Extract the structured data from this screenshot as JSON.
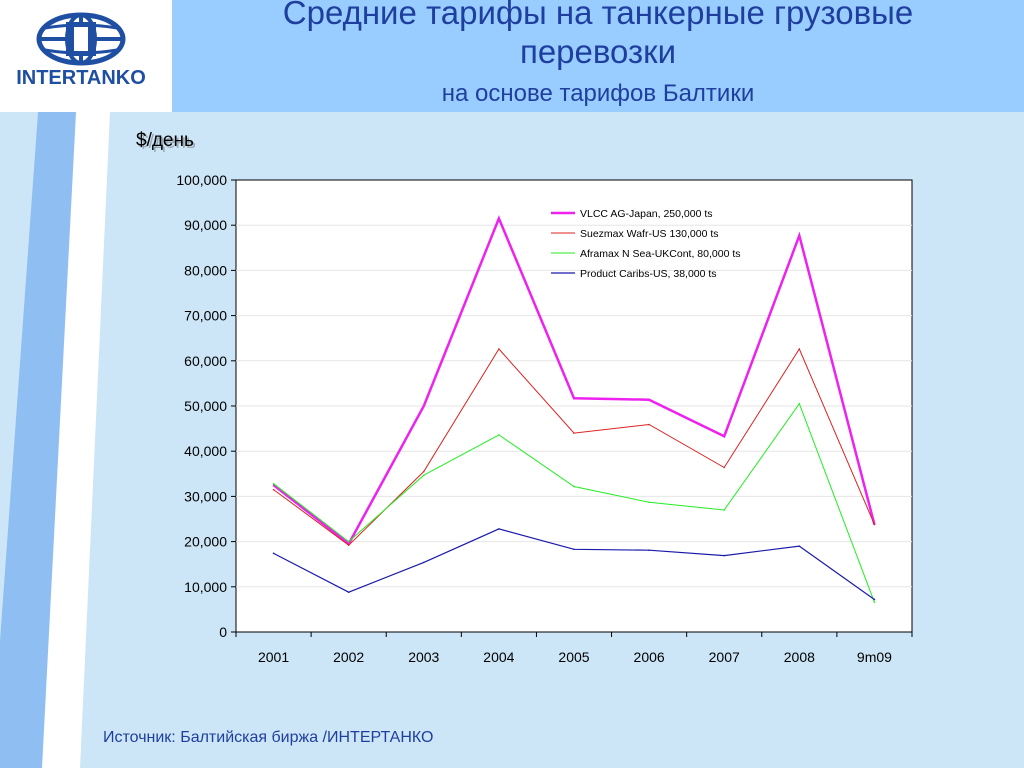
{
  "header": {
    "logo_text": "INTERTANKO",
    "title_line1": "Средние тарифы на танкерные грузовые",
    "title_line2": "перевозки",
    "subtitle": "на основе тарифов Балтики"
  },
  "footer": {
    "source": "Источник: Балтийская биржа /ИНТЕРТАНКО"
  },
  "colors": {
    "title": "#1f3f9f",
    "header_band": "#99ccff",
    "body_bg": "#cce6f7",
    "stripe": "#8fbef2"
  },
  "chart_data": {
    "type": "line",
    "ylabel": "$/день",
    "categories": [
      "2001",
      "2002",
      "2003",
      "2004",
      "2005",
      "2006",
      "2007",
      "2008",
      "9m09"
    ],
    "ylim": [
      0,
      100000
    ],
    "yticks": [
      0,
      10000,
      20000,
      30000,
      40000,
      50000,
      60000,
      70000,
      80000,
      90000,
      100000
    ],
    "ytick_labels": [
      "0",
      "10,000",
      "20,000",
      "30,000",
      "40,000",
      "50,000",
      "60,000",
      "70,000",
      "80,000",
      "90,000",
      "100,000"
    ],
    "grid": true,
    "legend_position": "top-right",
    "series": [
      {
        "name": "VLCC AG-Japan, 250,000 ts",
        "color": "#ee22ee",
        "values": [
          32500,
          19500,
          50000,
          91500,
          51700,
          51400,
          43300,
          87700,
          23800
        ]
      },
      {
        "name": "Suezmax Wafr-US 130,000 ts",
        "color": "#dd2222",
        "values": [
          31500,
          19200,
          35500,
          62600,
          44000,
          45900,
          36400,
          62600,
          23800
        ]
      },
      {
        "name": "Aframax N Sea-UKCont, 80,000 ts",
        "color": "#22ee22",
        "values": [
          32800,
          20000,
          34700,
          43600,
          32200,
          28700,
          27000,
          50500,
          6600
        ]
      },
      {
        "name": "Product Caribs-US, 38,000 ts",
        "color": "#1a1aaa",
        "values": [
          17400,
          8800,
          15400,
          22800,
          18300,
          18100,
          16900,
          19000,
          7200
        ]
      }
    ]
  }
}
